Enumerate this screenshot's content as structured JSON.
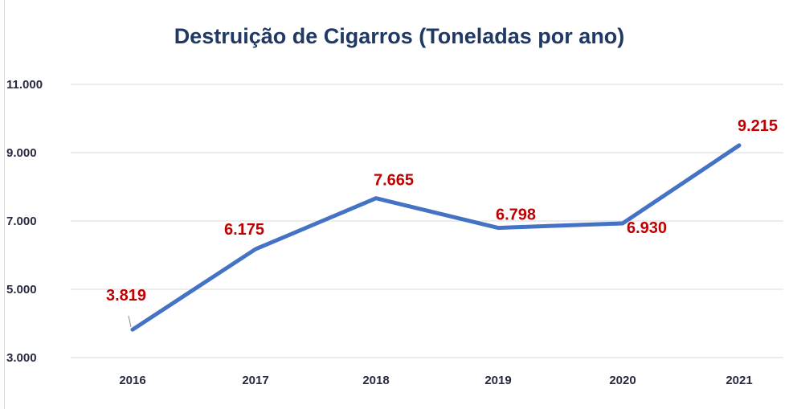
{
  "chart_data": {
    "type": "line",
    "title": "Destruição de Cigarros (Toneladas por ano)",
    "categories": [
      "2016",
      "2017",
      "2018",
      "2019",
      "2020",
      "2021"
    ],
    "values": [
      3819,
      6175,
      7665,
      6798,
      6930,
      9215
    ],
    "data_labels": [
      "3.819",
      "6.175",
      "7.665",
      "6.798",
      "6.930",
      "9.215"
    ],
    "y_ticks": [
      3000,
      5000,
      7000,
      9000,
      11000
    ],
    "y_tick_labels": [
      "3.000",
      "5.000",
      "7.000",
      "9.000",
      "11.000"
    ],
    "ylim": [
      3000,
      11000
    ],
    "grid": true,
    "legend": "none",
    "colors": {
      "line": "#4472c4",
      "labels": "#c00000",
      "title": "#1f3864",
      "grid": "#d9d9d9"
    }
  }
}
